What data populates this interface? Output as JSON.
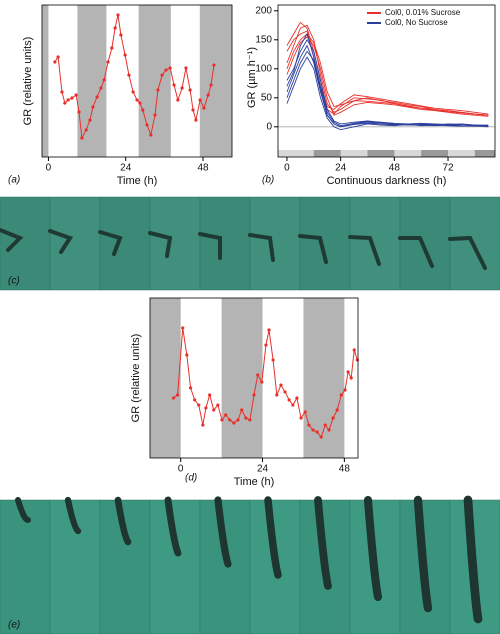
{
  "chart_data": [
    {
      "type": "line",
      "panel_label": "(a)",
      "x_label": "Time (h)",
      "y_label": "GR (relative units)",
      "xlim": [
        -2,
        57
      ],
      "ylim": [
        0,
        100
      ],
      "xticks": [
        0,
        24,
        48
      ],
      "dark_periods": [
        [
          -2,
          0
        ],
        [
          9,
          18
        ],
        [
          28,
          38
        ],
        [
          47,
          57
        ]
      ],
      "color": "#e8302a",
      "x": [
        2.0,
        3.0,
        4.2,
        5.1,
        6.1,
        7.3,
        8.6,
        9.5,
        10.4,
        11.7,
        12.9,
        13.8,
        15.1,
        16.3,
        17.3,
        18.5,
        19.7,
        20.7,
        21.6,
        22.5,
        23.8,
        25.0,
        26.3,
        27.5,
        28.4,
        29.3,
        30.6,
        31.8,
        33.1,
        34.0,
        35.3,
        36.5,
        37.8,
        39.0,
        40.2,
        41.5,
        42.7,
        44.0,
        44.9,
        45.8,
        47.1,
        48.3,
        49.6,
        50.5,
        51.4
      ],
      "values": [
        62.5,
        65.8,
        42.8,
        35.5,
        37.5,
        38.8,
        40.8,
        29.6,
        12.5,
        17.8,
        24.3,
        32.9,
        39.5,
        45.4,
        50.7,
        62.5,
        71.7,
        84.9,
        93.4,
        80.3,
        67.1,
        53.9,
        42.8,
        37.5,
        35.5,
        30.9,
        21.1,
        14.5,
        27.6,
        44.1,
        53.9,
        57.2,
        58.6,
        47.4,
        37.5,
        45.4,
        58.6,
        44.1,
        30.9,
        24.3,
        37.5,
        32.2,
        40.8,
        47.4,
        60.5
      ]
    },
    {
      "type": "multiline",
      "panel_label": "(b)",
      "x_label": "Continuous darkness (h)",
      "y_label": "GR (µm h⁻¹)",
      "xlim": [
        -4,
        93
      ],
      "ylim": [
        -40,
        210
      ],
      "xticks": [
        0,
        24,
        48,
        72
      ],
      "yticks": [
        0,
        50,
        100,
        150,
        200
      ],
      "zero_line": true,
      "legend": "upper right",
      "dark_periods": [
        [
          12,
          24
        ],
        [
          36,
          48
        ],
        [
          60,
          72
        ],
        [
          84,
          93
        ]
      ],
      "x": [
        0,
        3,
        6,
        9,
        12,
        15,
        18,
        21,
        24,
        30,
        36,
        42,
        48,
        54,
        60,
        66,
        72,
        78,
        84,
        90
      ],
      "series": [
        {
          "name": "Col0, 0.01% Sucrose",
          "color": "#e8302a",
          "lines": [
            [
              110,
              140,
              170,
              175,
              150,
              90,
              40,
              25,
              30,
              45,
              50,
              45,
              42,
              38,
              35,
              30,
              28,
              25,
              22,
              20
            ],
            [
              130,
              150,
              160,
              165,
              120,
              70,
              35,
              30,
              40,
              55,
              52,
              48,
              44,
              40,
              36,
              32,
              30,
              28,
              25,
              22
            ],
            [
              90,
              120,
              145,
              155,
              140,
              100,
              50,
              20,
              25,
              38,
              42,
              40,
              38,
              34,
              30,
              28,
              25,
              22,
              20,
              18
            ],
            [
              140,
              160,
              180,
              170,
              130,
              80,
              30,
              22,
              35,
              50,
              48,
              46,
              40,
              36,
              32,
              30,
              26,
              24,
              22,
              20
            ],
            [
              100,
              130,
              150,
              160,
              145,
              110,
              60,
              35,
              38,
              45,
              44,
              42,
              40,
              35,
              32,
              28,
              26,
              25,
              22,
              20
            ]
          ]
        },
        {
          "name": "Col0, No Sucrose",
          "color": "#2b3f9e",
          "lines": [
            [
              60,
              90,
              120,
              140,
              110,
              60,
              20,
              5,
              0,
              5,
              8,
              5,
              3,
              5,
              4,
              3,
              5,
              4,
              3,
              2
            ],
            [
              80,
              100,
              130,
              150,
              130,
              80,
              30,
              10,
              5,
              8,
              10,
              8,
              6,
              5,
              6,
              5,
              4,
              5,
              3,
              3
            ],
            [
              40,
              70,
              100,
              120,
              100,
              50,
              15,
              0,
              -5,
              0,
              5,
              3,
              2,
              4,
              2,
              3,
              2,
              1,
              2,
              0
            ],
            [
              70,
              95,
              140,
              160,
              120,
              70,
              25,
              8,
              2,
              6,
              9,
              7,
              5,
              4,
              5,
              4,
              3,
              4,
              2,
              2
            ],
            [
              50,
              80,
              110,
              130,
              115,
              65,
              20,
              5,
              0,
              4,
              6,
              5,
              4,
              3,
              3,
              2,
              3,
              2,
              1,
              1
            ]
          ]
        }
      ]
    },
    {
      "type": "line",
      "panel_label": "(d)",
      "x_label": "Time (h)",
      "y_label": "GR (relative units)",
      "xlim": [
        -9,
        52
      ],
      "ylim": [
        0,
        100
      ],
      "xticks": [
        0,
        24,
        48
      ],
      "dark_periods": [
        [
          -9,
          0
        ],
        [
          12,
          24
        ],
        [
          36,
          48
        ]
      ],
      "color": "#e8302a",
      "x": [
        -2.1,
        -0.9,
        0.6,
        1.8,
        2.9,
        4.1,
        5.3,
        6.5,
        7.4,
        8.5,
        9.7,
        10.9,
        12.1,
        13.2,
        14.4,
        15.6,
        16.8,
        17.9,
        19.1,
        20.3,
        21.5,
        22.6,
        23.8,
        25.0,
        25.9,
        27.1,
        28.2,
        29.4,
        30.6,
        31.8,
        32.9,
        34.1,
        35.3,
        36.5,
        37.6,
        38.8,
        40.0,
        41.2,
        42.4,
        43.5,
        44.7,
        45.9,
        47.1,
        48.2,
        49.1,
        50.0,
        50.9,
        51.8
      ],
      "values": [
        37.5,
        39.4,
        81.3,
        64.4,
        43.8,
        36.3,
        33.1,
        20.6,
        31.3,
        39.4,
        30,
        33.1,
        23.8,
        26.9,
        23.8,
        21.9,
        23.8,
        30,
        25,
        23.8,
        39.4,
        51.9,
        47.5,
        70.6,
        80,
        61.3,
        39.4,
        45.6,
        41.3,
        36.3,
        33.1,
        37.5,
        25,
        28.8,
        20.6,
        17.5,
        16.3,
        13.1,
        20.6,
        17.5,
        25,
        30,
        39.4,
        42.5,
        53.8,
        50,
        67.5,
        61.3
      ]
    }
  ],
  "photo_panels": [
    {
      "label": "(c)"
    },
    {
      "label": "(e)"
    }
  ]
}
